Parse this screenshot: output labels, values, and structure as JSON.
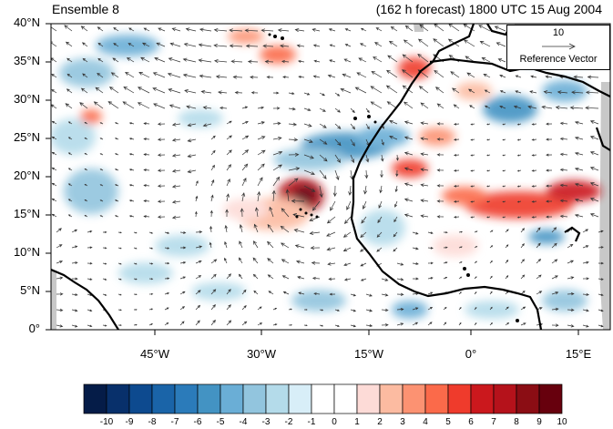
{
  "title_left": "Ensemble 8",
  "title_right": "(162 h forecast) 1800 UTC 15 Aug 2004",
  "lat_labels": [
    "40°N",
    "35°N",
    "30°N",
    "25°N",
    "20°N",
    "15°N",
    "10°N",
    "5°N",
    "0°"
  ],
  "lon_labels": [
    "45°W",
    "30°W",
    "15°W",
    "0°",
    "15°E"
  ],
  "reference_vector": {
    "magnitude": "10",
    "label": "Reference Vector"
  },
  "colorbar": {
    "labels": [
      "-10",
      "-9",
      "-8",
      "-7",
      "-6",
      "-5",
      "-4",
      "-3",
      "-2",
      "-1",
      "0",
      "1",
      "2",
      "3",
      "4",
      "5",
      "6",
      "7",
      "8",
      "9",
      "10"
    ],
    "colors": [
      "#051c48",
      "#08306b",
      "#0d4a8f",
      "#1a64a8",
      "#2b7bba",
      "#4393c3",
      "#6aaed6",
      "#92c5de",
      "#b4dbea",
      "#d8eef8",
      "#ffffff",
      "#ffffff",
      "#fddbd7",
      "#fcbba1",
      "#fc9272",
      "#fb6a4a",
      "#ef3b2c",
      "#cb181d",
      "#b5121b",
      "#8b0d14",
      "#67000d"
    ]
  },
  "colors": {
    "land_mask": "#c8c8c8",
    "coast": "#000000",
    "vector": "#333333"
  }
}
